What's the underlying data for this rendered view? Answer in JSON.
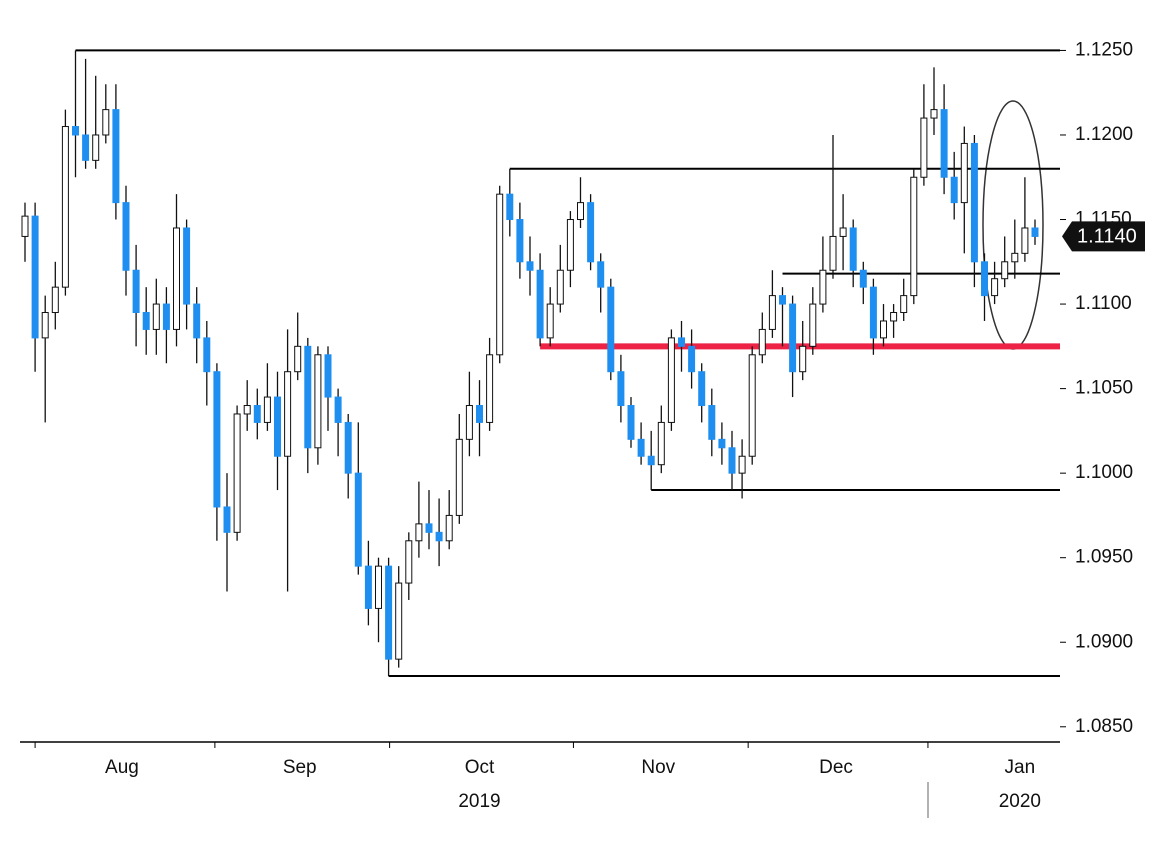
{
  "chart_data": {
    "type": "candlestick",
    "open": [
      1.114,
      1.1152,
      1.108,
      1.1095,
      1.111,
      1.1205,
      1.12,
      1.1185,
      1.12,
      1.1215,
      1.116,
      1.112,
      1.1095,
      1.1085,
      1.11,
      1.1085,
      1.1145,
      1.11,
      1.108,
      1.106,
      1.098,
      1.0965,
      1.1035,
      1.104,
      1.103,
      1.1045,
      1.101,
      1.106,
      1.1075,
      1.1015,
      1.107,
      1.1045,
      1.103,
      1.1,
      1.0945,
      1.092,
      1.0945,
      1.089,
      1.0935,
      1.096,
      1.097,
      1.0965,
      1.096,
      1.0975,
      1.102,
      1.104,
      1.103,
      1.107,
      1.1165,
      1.115,
      1.1125,
      1.112,
      1.108,
      1.11,
      1.112,
      1.115,
      1.116,
      1.1125,
      1.111,
      1.106,
      1.104,
      1.102,
      1.101,
      1.1005,
      1.103,
      1.108,
      1.1075,
      1.106,
      1.104,
      1.102,
      1.1015,
      1.1,
      1.101,
      1.107,
      1.1085,
      1.1105,
      1.11,
      1.106,
      1.1075,
      1.11,
      1.112,
      1.114,
      1.1145,
      1.112,
      1.111,
      1.108,
      1.109,
      1.1095,
      1.1105,
      1.1175,
      1.121,
      1.1215,
      1.1175,
      1.116,
      1.1195,
      1.1125,
      1.1105,
      1.1115,
      1.1125,
      1.113,
      1.1145
    ],
    "high": [
      1.116,
      1.116,
      1.1105,
      1.1125,
      1.1215,
      1.125,
      1.1245,
      1.1235,
      1.123,
      1.123,
      1.117,
      1.1135,
      1.111,
      1.1115,
      1.111,
      1.1165,
      1.115,
      1.111,
      1.109,
      1.1065,
      1.1,
      1.104,
      1.1055,
      1.105,
      1.1065,
      1.106,
      1.1085,
      1.1095,
      1.108,
      1.1075,
      1.1075,
      1.105,
      1.1035,
      1.103,
      1.096,
      1.095,
      1.095,
      1.0945,
      1.0965,
      1.0995,
      1.099,
      1.0985,
      1.099,
      1.1035,
      1.106,
      1.1055,
      1.108,
      1.117,
      1.118,
      1.116,
      1.114,
      1.113,
      1.111,
      1.1135,
      1.1155,
      1.1175,
      1.1165,
      1.113,
      1.1115,
      1.107,
      1.1045,
      1.103,
      1.1025,
      1.104,
      1.1085,
      1.109,
      1.1085,
      1.1065,
      1.105,
      1.103,
      1.1025,
      1.102,
      1.1075,
      1.1095,
      1.112,
      1.111,
      1.1105,
      1.109,
      1.111,
      1.114,
      1.12,
      1.1165,
      1.115,
      1.1125,
      1.1115,
      1.11,
      1.11,
      1.1115,
      1.118,
      1.123,
      1.124,
      1.123,
      1.119,
      1.1205,
      1.12,
      1.113,
      1.1125,
      1.114,
      1.115,
      1.1175,
      1.115
    ],
    "low": [
      1.1125,
      1.106,
      1.103,
      1.1085,
      1.1105,
      1.1175,
      1.118,
      1.118,
      1.1195,
      1.115,
      1.1105,
      1.1075,
      1.107,
      1.107,
      1.1065,
      1.1075,
      1.1085,
      1.1065,
      1.104,
      1.096,
      1.093,
      1.096,
      1.1025,
      1.102,
      1.1025,
      1.099,
      1.093,
      1.1055,
      1.1,
      1.1005,
      1.1025,
      1.101,
      1.0985,
      1.094,
      1.091,
      1.09,
      1.088,
      1.0885,
      1.0925,
      1.095,
      1.0955,
      1.0945,
      1.0955,
      1.097,
      1.101,
      1.101,
      1.1025,
      1.1065,
      1.114,
      1.1115,
      1.1105,
      1.1075,
      1.1075,
      1.1095,
      1.111,
      1.1145,
      1.112,
      1.1095,
      1.1055,
      1.103,
      1.1015,
      1.1005,
      1.099,
      1.1,
      1.1025,
      1.106,
      1.105,
      1.103,
      1.101,
      1.1005,
      1.099,
      1.0985,
      1.1005,
      1.1065,
      1.108,
      1.1075,
      1.1045,
      1.1055,
      1.107,
      1.1095,
      1.1115,
      1.112,
      1.111,
      1.11,
      1.107,
      1.1075,
      1.108,
      1.109,
      1.11,
      1.117,
      1.12,
      1.1165,
      1.115,
      1.113,
      1.111,
      1.109,
      1.11,
      1.111,
      1.1115,
      1.1125,
      1.1135
    ],
    "close": [
      1.1152,
      1.108,
      1.1095,
      1.111,
      1.1205,
      1.12,
      1.1185,
      1.12,
      1.1215,
      1.116,
      1.112,
      1.1095,
      1.1085,
      1.11,
      1.1085,
      1.1145,
      1.11,
      1.108,
      1.106,
      1.098,
      1.0965,
      1.1035,
      1.104,
      1.103,
      1.1045,
      1.101,
      1.106,
      1.1075,
      1.1015,
      1.107,
      1.1045,
      1.103,
      1.1,
      1.0945,
      1.092,
      1.0945,
      1.089,
      1.0935,
      1.096,
      1.097,
      1.0965,
      1.096,
      1.0975,
      1.102,
      1.104,
      1.103,
      1.107,
      1.1165,
      1.115,
      1.1125,
      1.112,
      1.108,
      1.11,
      1.112,
      1.115,
      1.116,
      1.1125,
      1.111,
      1.106,
      1.104,
      1.102,
      1.101,
      1.1005,
      1.103,
      1.108,
      1.1075,
      1.106,
      1.104,
      1.102,
      1.1015,
      1.1,
      1.101,
      1.107,
      1.1085,
      1.1105,
      1.11,
      1.106,
      1.1075,
      1.11,
      1.112,
      1.114,
      1.1145,
      1.112,
      1.111,
      1.108,
      1.109,
      1.1095,
      1.1105,
      1.1175,
      1.121,
      1.1215,
      1.1175,
      1.116,
      1.1195,
      1.1125,
      1.1105,
      1.1115,
      1.1125,
      1.113,
      1.1145,
      1.114
    ],
    "up_color": "#ffffff",
    "down_color": "#1e8ff0",
    "ylim": [
      1.0841,
      1.1268
    ],
    "yticks": [
      {
        "value": 1.085,
        "label": "1.0850"
      },
      {
        "value": 1.09,
        "label": "1.0900"
      },
      {
        "value": 1.095,
        "label": "1.0950"
      },
      {
        "value": 1.1,
        "label": "1.1000"
      },
      {
        "value": 1.105,
        "label": "1.1050"
      },
      {
        "value": 1.11,
        "label": "1.1100"
      },
      {
        "value": 1.115,
        "label": "1.1150"
      },
      {
        "value": 1.12,
        "label": "1.1200"
      },
      {
        "value": 1.125,
        "label": "1.1250"
      }
    ],
    "xticks": [
      1,
      18.8,
      36.1,
      54.3,
      71.6,
      89.4
    ],
    "x_labels": [
      {
        "label": "Aug",
        "index": 9.6
      },
      {
        "label": "Sep",
        "index": 27.2
      },
      {
        "label": "Oct",
        "index": 45
      },
      {
        "label": "Nov",
        "index": 62.7
      },
      {
        "label": "Dec",
        "index": 80.3
      },
      {
        "label": "Jan",
        "index": 98.5
      }
    ],
    "year_labels": [
      {
        "label": "2019",
        "index": 45
      },
      {
        "label": "2020",
        "index": 98.5
      }
    ],
    "levels": [
      {
        "value": 1.125,
        "from": 5,
        "color": "#000000"
      },
      {
        "value": 1.118,
        "from": 48,
        "color": "#000000"
      },
      {
        "value": 1.1118,
        "from": 75,
        "color": "#000000"
      },
      {
        "value": 1.099,
        "from": 62,
        "color": "#000000"
      },
      {
        "value": 1.088,
        "from": 36,
        "color": "#000000"
      },
      {
        "value": 1.1075,
        "from": 51,
        "color": "#ee2244"
      }
    ],
    "last_price": {
      "value": 1.114,
      "label": "1.1140"
    }
  }
}
